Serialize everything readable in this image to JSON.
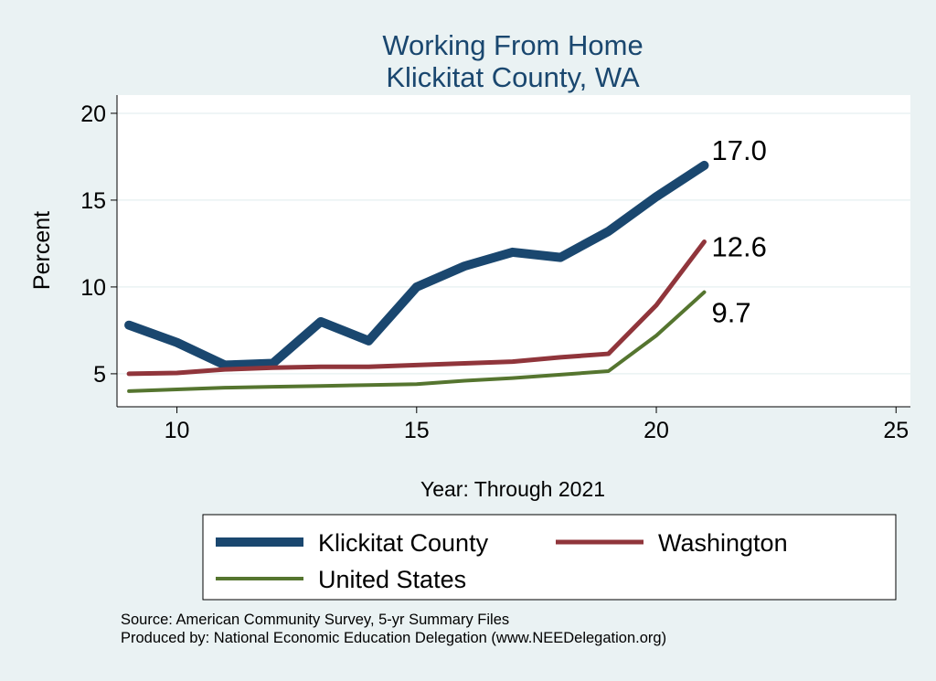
{
  "chart_data": {
    "type": "line",
    "title": "Working From Home",
    "subtitle": "Klickitat County, WA",
    "xlabel": "Year: Through 2021",
    "ylabel": "Percent",
    "xlim": [
      8.75,
      25.3
    ],
    "ylim": [
      3.1,
      21.05
    ],
    "xticks": [
      10,
      15,
      20,
      25
    ],
    "yticks": [
      5,
      10,
      15,
      20
    ],
    "grid": true,
    "legend_position": "bottom",
    "x": [
      9,
      10,
      11,
      12,
      13,
      14,
      15,
      16,
      17,
      18,
      19,
      20,
      21
    ],
    "series": [
      {
        "name": "Klickitat County",
        "color": "#1a476f",
        "end_label": "17.0",
        "values": [
          7.8,
          6.8,
          5.5,
          5.6,
          8.0,
          6.9,
          10.0,
          11.2,
          12.0,
          11.7,
          13.2,
          15.2,
          17.0
        ]
      },
      {
        "name": "Washington",
        "color": "#90353b",
        "end_label": "12.6",
        "values": [
          5.0,
          5.05,
          5.25,
          5.35,
          5.4,
          5.4,
          5.5,
          5.6,
          5.7,
          5.95,
          6.15,
          8.95,
          12.6
        ]
      },
      {
        "name": "United States",
        "color": "#55752f",
        "end_label": "9.7",
        "values": [
          4.0,
          4.1,
          4.2,
          4.25,
          4.3,
          4.35,
          4.4,
          4.6,
          4.75,
          4.95,
          5.15,
          7.2,
          9.7
        ]
      }
    ]
  },
  "notes": {
    "source": "Source: American Community Survey, 5-yr Summary Files",
    "produced": "Produced by: National Economic Education Delegation (www.NEEDelegation.org)"
  }
}
